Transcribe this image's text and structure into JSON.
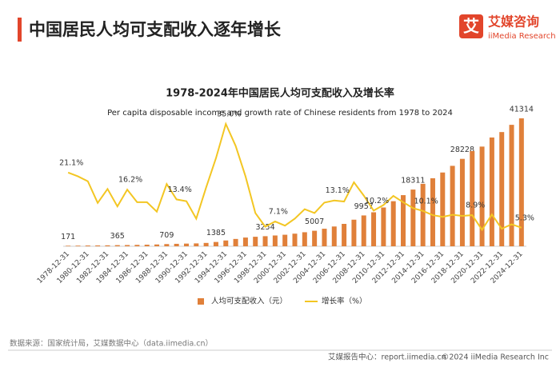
{
  "header": {
    "title": "中国居民人均可支配收入逐年增长"
  },
  "logo": {
    "icon": "艾",
    "cn": "艾媒咨询",
    "en": "iiMedia Research"
  },
  "footer": {
    "source": "数据来源：国家统计局，艾媒数据中心（data.iimedia.cn）",
    "report": "艾媒报告中心：report.iimedia.cn",
    "copyright": "©2024 iiMedia Research Inc"
  },
  "chart_data": {
    "type": "bar",
    "title": "1978-2024年中国居民人均可支配收入及增长率",
    "subtitle": "Per capita disposable income and growth rate of Chinese residents from 1978 to 2024",
    "categories": [
      "1978-12-31",
      null,
      "1980-12-31",
      null,
      "1982-12-31",
      null,
      "1984-12-31",
      null,
      "1986-12-31",
      null,
      "1988-12-31",
      null,
      "1990-12-31",
      null,
      "1992-12-31",
      null,
      "1994-12-31",
      null,
      "1996-12-31",
      null,
      "1998-12-31",
      null,
      "2000-12-31",
      null,
      "2002-12-31",
      null,
      "2004-12-31",
      null,
      "2006-12-31",
      null,
      "2008-12-31",
      null,
      "2010-12-31",
      null,
      "2012-12-31",
      null,
      "2014-12-31",
      null,
      "2016-12-31",
      null,
      "2018-12-31",
      null,
      "2020-12-31",
      null,
      "2022-12-31",
      null,
      "2024-12-31"
    ],
    "series": [
      {
        "name": "人均可支配收入（元）",
        "color": "#e0803a",
        "values": [
          171,
          202,
          247,
          272,
          305,
          365,
          395,
          450,
          510,
          580,
          709,
          790,
          860,
          925,
          1080,
          1385,
          1870,
          2363,
          2814,
          3070,
          3254,
          3485,
          3721,
          4070,
          4532,
          5007,
          5661,
          6385,
          7229,
          8584,
          9957,
          10977,
          12520,
          14551,
          16510,
          18311,
          20167,
          21966,
          23821,
          25974,
          28228,
          30733,
          32189,
          35128,
          36883,
          39218,
          41314
        ],
        "value_labels": [
          "171",
          null,
          null,
          null,
          null,
          "365",
          null,
          null,
          null,
          null,
          "709",
          null,
          null,
          null,
          null,
          "1385",
          null,
          null,
          null,
          null,
          "3254",
          null,
          null,
          null,
          null,
          "5007",
          null,
          null,
          null,
          null,
          "9957",
          null,
          null,
          null,
          null,
          "18311",
          null,
          null,
          null,
          null,
          "28228",
          null,
          null,
          null,
          null,
          null,
          "41314"
        ]
      },
      {
        "name": "增长率（%）",
        "color": "#f3c623",
        "type": "line",
        "axis": "y2",
        "values": [
          21.1,
          20.0,
          18.6,
          12.4,
          16.4,
          11.4,
          16.2,
          12.6,
          12.6,
          9.9,
          17.8,
          13.4,
          12.9,
          7.9,
          16.8,
          25.2,
          35.0,
          28.7,
          20.0,
          9.5,
          5.6,
          7.1,
          5.9,
          7.9,
          10.6,
          9.5,
          12.5,
          13.1,
          12.8,
          18.3,
          14.5,
          10.2,
          11.8,
          14.4,
          12.6,
          10.9,
          10.1,
          8.9,
          8.4,
          9.0,
          8.7,
          8.9,
          4.7,
          9.1,
          5.0,
          6.3,
          5.3
        ],
        "value_labels": [
          "21.1%",
          null,
          null,
          null,
          null,
          null,
          "16.2%",
          null,
          null,
          null,
          null,
          "13.4%",
          null,
          null,
          null,
          null,
          "35.0%",
          null,
          null,
          null,
          null,
          "7.1%",
          null,
          null,
          null,
          null,
          null,
          "13.1%",
          null,
          null,
          null,
          "10.2%",
          null,
          null,
          null,
          null,
          "10.1%",
          null,
          null,
          null,
          null,
          "8.9%",
          null,
          null,
          null,
          null,
          "5.3%"
        ]
      }
    ],
    "legend": "bottom"
  }
}
